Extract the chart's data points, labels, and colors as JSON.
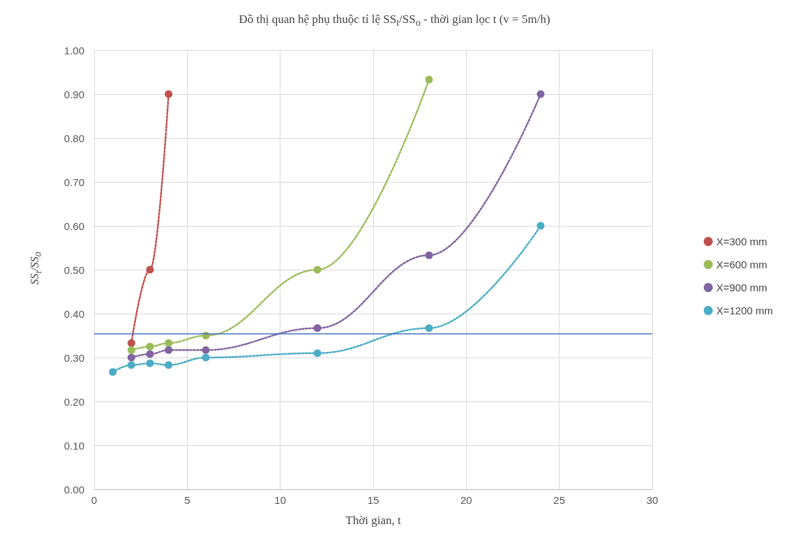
{
  "chart_data": {
    "type": "line",
    "title": "Đồ thị quan hệ phụ thuộc tỉ lệ SS$_{t}$/SS$_{o}$ - thời gian lọc t (v = 5m/h)",
    "xlabel": "Thời gian, t",
    "ylabel": "SS$_{t}$/SS$_{0}$",
    "series": [
      {
        "name": "X=300 mm",
        "color": "#c0504d",
        "x": [
          2,
          3,
          4
        ],
        "values": [
          0.333,
          0.5,
          0.9
        ]
      },
      {
        "name": "X=600 mm",
        "color": "#9bbb59",
        "x": [
          2,
          3,
          4,
          6,
          12,
          18
        ],
        "values": [
          0.317,
          0.325,
          0.333,
          0.35,
          0.5,
          0.933
        ]
      },
      {
        "name": "X=900 mm",
        "color": "#8064a2",
        "x": [
          2,
          3,
          4,
          6,
          12,
          18,
          24
        ],
        "values": [
          0.3,
          0.308,
          0.317,
          0.317,
          0.367,
          0.533,
          0.9
        ]
      },
      {
        "name": "X=1200 mm",
        "color": "#4bacc6",
        "x": [
          1,
          2,
          3,
          4,
          6,
          12,
          18,
          24
        ],
        "values": [
          0.267,
          0.283,
          0.287,
          0.283,
          0.3,
          0.31,
          0.367,
          0.6
        ]
      }
    ],
    "xlim": [
      0,
      30
    ],
    "xticks": [
      0,
      5,
      10,
      15,
      20,
      25,
      30
    ],
    "ylim": [
      0,
      1
    ],
    "yticks": [
      {
        "value": 0,
        "label": "0.00"
      },
      {
        "value": 0.1,
        "label": "0.10"
      },
      {
        "value": 0.2,
        "label": "0.20"
      },
      {
        "value": 0.3,
        "label": "0.30"
      },
      {
        "value": 0.4,
        "label": "0.40"
      },
      {
        "value": 0.5,
        "label": "0.50"
      },
      {
        "value": 0.6,
        "label": "0.60"
      },
      {
        "value": 0.7,
        "label": "0.70"
      },
      {
        "value": 0.8,
        "label": "0.80"
      },
      {
        "value": 0.9,
        "label": "0.90"
      },
      {
        "value": 1,
        "label": "1.00"
      }
    ],
    "ref_lines": [
      {
        "axis": "y",
        "value": 0.355,
        "color": "#4472c4"
      }
    ],
    "grid": true,
    "legend": "right",
    "marker": "circle",
    "line_style": "dotted"
  }
}
